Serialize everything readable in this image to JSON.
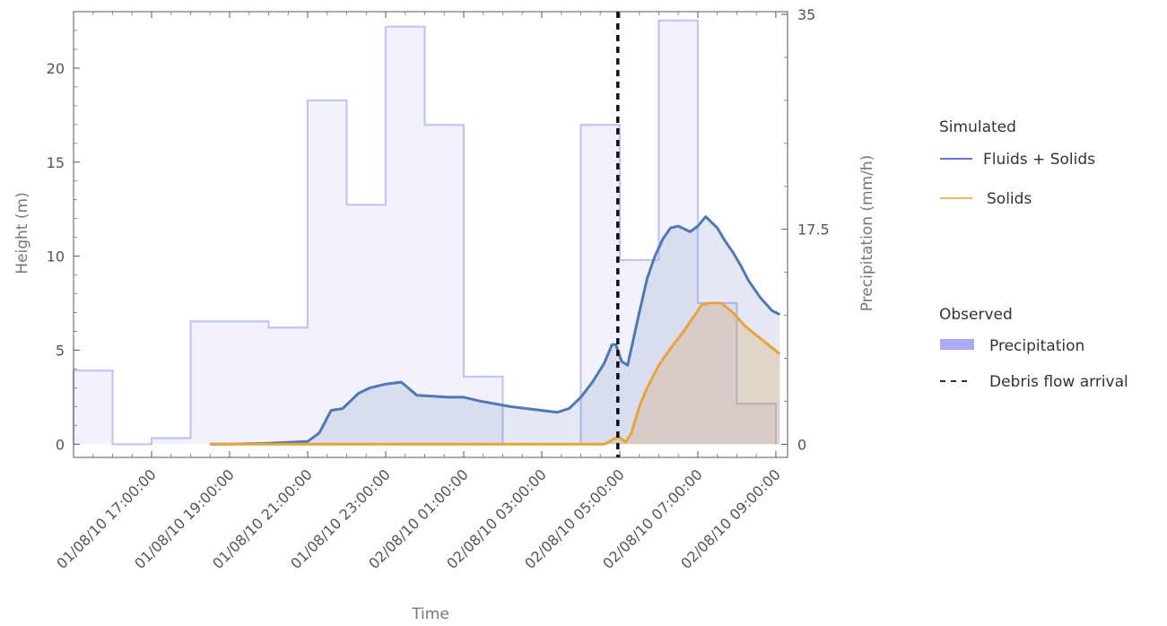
{
  "chart_data": {
    "type": "line",
    "xlabel": "Time",
    "ylabel": "Height (m)",
    "y2label": "Precipitation (mm/h)",
    "xlim_hours": [
      -1.0,
      17.3
    ],
    "ylim": [
      -0.7,
      23.0
    ],
    "y2lim": [
      -1.07,
      35.22
    ],
    "x_ticks": [
      {
        "h": 1,
        "label": "01/08/10  17:00:00"
      },
      {
        "h": 3,
        "label": "01/08/10  19:00:00"
      },
      {
        "h": 5,
        "label": "01/08/10  21:00:00"
      },
      {
        "h": 7,
        "label": "01/08/10  23:00:00"
      },
      {
        "h": 9,
        "label": "02/08/10  01:00:00"
      },
      {
        "h": 11,
        "label": "02/08/10  03:00:00"
      },
      {
        "h": 13,
        "label": "02/08/10  05:00:00"
      },
      {
        "h": 15,
        "label": "02/08/10  07:00:00"
      },
      {
        "h": 17,
        "label": "02/08/10  09:00:00"
      }
    ],
    "y_ticks": [
      0,
      5,
      10,
      15,
      20
    ],
    "y2_ticks": [
      {
        "v": 0,
        "label": "0"
      },
      {
        "v": 17.5,
        "label": "17.5"
      },
      {
        "v": 35,
        "label": "35"
      }
    ],
    "series": [
      {
        "name": "Fluids + Solids",
        "group": "Simulated",
        "color": "#4f79b5",
        "x_hours": [
          2.5,
          3.0,
          4.0,
          4.5,
          5.0,
          5.3,
          5.6,
          5.9,
          6.1,
          6.3,
          6.6,
          7.0,
          7.4,
          7.8,
          8.2,
          8.6,
          9.0,
          9.4,
          9.8,
          10.2,
          10.6,
          11.0,
          11.4,
          11.7,
          12.0,
          12.3,
          12.6,
          12.8,
          12.9,
          13.05,
          13.2,
          13.5,
          13.7,
          13.9,
          14.1,
          14.3,
          14.5,
          14.8,
          15.0,
          15.2,
          15.5,
          15.7,
          15.9,
          16.1,
          16.3,
          16.6,
          16.9,
          17.1
        ],
        "values": [
          0,
          0,
          0.05,
          0.1,
          0.15,
          0.6,
          1.8,
          1.9,
          2.3,
          2.7,
          3.0,
          3.2,
          3.3,
          2.6,
          2.55,
          2.5,
          2.5,
          2.3,
          2.15,
          2.0,
          1.9,
          1.8,
          1.7,
          1.9,
          2.5,
          3.3,
          4.3,
          5.3,
          5.3,
          4.4,
          4.2,
          7.0,
          8.8,
          10.0,
          10.9,
          11.5,
          11.6,
          11.3,
          11.6,
          12.1,
          11.5,
          10.8,
          10.2,
          9.5,
          8.7,
          7.8,
          7.1,
          6.9
        ]
      },
      {
        "name": "Solids",
        "group": "Simulated",
        "color": "#e8a33a",
        "x_hours": [
          2.5,
          12.6,
          12.7,
          12.9,
          13.0,
          13.15,
          13.3,
          13.5,
          13.7,
          14.0,
          14.3,
          14.6,
          14.9,
          15.1,
          15.3,
          15.6,
          15.9,
          16.2,
          16.5,
          16.8,
          17.1
        ],
        "values": [
          0,
          0,
          0.1,
          0.35,
          0.35,
          0.1,
          0.6,
          2.0,
          3.0,
          4.2,
          5.1,
          5.9,
          6.8,
          7.4,
          7.5,
          7.5,
          7.0,
          6.3,
          5.8,
          5.3,
          4.8
        ]
      },
      {
        "name": "Precipitation",
        "group": "Observed",
        "color": "#aeaef7",
        "type": "step",
        "bin_hours": 1,
        "x_start_hours": [
          -1,
          0,
          1,
          2,
          3,
          4,
          5,
          6,
          7,
          8,
          9,
          10,
          11,
          12,
          13,
          14,
          15,
          16
        ],
        "values": [
          6.0,
          0,
          0.5,
          10.0,
          10.0,
          9.5,
          28.0,
          19.5,
          34.0,
          26.0,
          5.5,
          0,
          0,
          26.0,
          15.0,
          34.5,
          11.5,
          3.3
        ]
      }
    ],
    "annotations": [
      {
        "name": "Debris flow arrival",
        "group": "Observed",
        "type": "vline",
        "x_hours": 12.95,
        "style": "dashed",
        "color": "#111111"
      }
    ],
    "legend": {
      "position": "right",
      "groups": [
        {
          "title": "Simulated",
          "items": [
            "Fluids + Solids",
            "Solids"
          ]
        },
        {
          "title": "Observed",
          "items": [
            "Precipitation",
            "Debris flow arrival"
          ]
        }
      ]
    }
  }
}
